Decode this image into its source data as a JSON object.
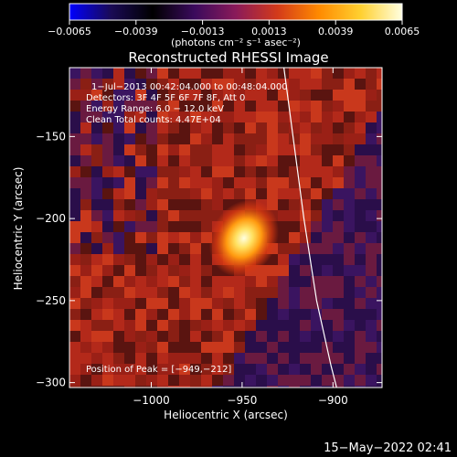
{
  "colorbar": {
    "tick_labels": [
      "−0.0065",
      "−0.0039",
      "−0.0013",
      "0.0013",
      "0.0039",
      "0.0065"
    ],
    "tick_values": [
      -0.0065,
      -0.0039,
      -0.0013,
      0.0013,
      0.0039,
      0.0065
    ],
    "range": [
      -0.0065,
      0.0065
    ],
    "unit_label": "(photons cm⁻² s⁻¹ asec⁻²)",
    "colormap_stops": [
      "#0000ff",
      "#1a0a55",
      "#000000",
      "#3a0a5c",
      "#8a1a5a",
      "#d33a1a",
      "#ff8a00",
      "#ffd030",
      "#ffffe0"
    ]
  },
  "chart_data": {
    "type": "heatmap",
    "title": "Reconstructed RHESSI Image",
    "xlabel": "Heliocentric X (arcsec)",
    "ylabel": "Heliocentric Y (arcsec)",
    "x_ticks": [
      {
        "value": -1000,
        "label": "−1000"
      },
      {
        "value": -950,
        "label": "−950"
      },
      {
        "value": -900,
        "label": "−900"
      }
    ],
    "y_ticks": [
      {
        "value": -150,
        "label": "−150"
      },
      {
        "value": -200,
        "label": "−200"
      },
      {
        "value": -250,
        "label": "−250"
      },
      {
        "value": -300,
        "label": "−300"
      }
    ],
    "xlim": [
      -1045,
      -873
    ],
    "ylim": [
      -303,
      -108
    ],
    "peak": {
      "x": -949,
      "y": -212,
      "value": 0.0065
    },
    "info_lines": [
      "1−Jul−2013 00:42:04.000 to 00:48:04.000",
      "Detectors: 3F 4F 5F 6F 7F 8F, Att 0",
      "Energy Range: 6.0 − 12.0 keV",
      "Clean     Total counts: 4.47E+04"
    ],
    "peak_label": "Position of Peak = [−949,−212]",
    "limb_points": [
      {
        "x": -927,
        "y": -108
      },
      {
        "x": -922,
        "y": -150
      },
      {
        "x": -916,
        "y": -200
      },
      {
        "x": -909,
        "y": -250
      },
      {
        "x": -901,
        "y": -290
      },
      {
        "x": -898,
        "y": -303
      }
    ]
  },
  "footer": {
    "timestamp": "15−May−2022 02:41"
  }
}
